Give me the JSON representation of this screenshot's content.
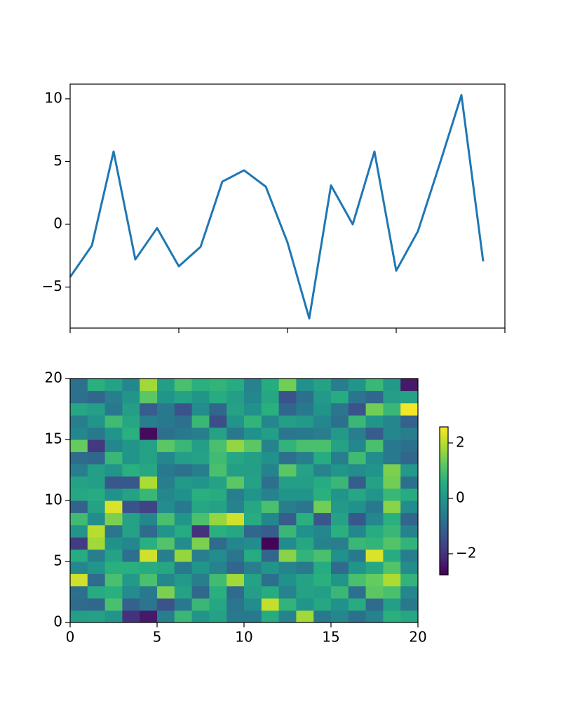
{
  "chart_data": [
    {
      "type": "line",
      "color": "#1f77b4",
      "x": [
        0,
        1,
        2,
        3,
        4,
        5,
        6,
        7,
        8,
        9,
        10,
        11,
        12,
        13,
        14,
        15,
        16,
        17,
        18,
        19
      ],
      "values": [
        -4.2,
        -1.7,
        5.8,
        -2.8,
        -0.3,
        -3.35,
        -1.8,
        3.4,
        4.3,
        3.0,
        -1.45,
        -7.5,
        3.1,
        0.0,
        5.8,
        -3.7,
        -0.55,
        4.8,
        10.3,
        -2.95
      ],
      "xlim": [
        0,
        20
      ],
      "xticks": [
        0,
        5,
        10,
        15,
        20
      ],
      "show_xtick_labels": false,
      "ylim": [
        -8.27,
        11.17
      ],
      "yticks": [
        {
          "value": -5,
          "label": "−5"
        },
        0,
        5,
        10
      ]
    },
    {
      "type": "heatmap",
      "colormap": "viridis",
      "xlim": [
        0,
        20
      ],
      "ylim": [
        0,
        20
      ],
      "xticks": [
        0,
        5,
        10,
        15,
        20
      ],
      "yticks": [
        0,
        5,
        10,
        15,
        20
      ],
      "clim": [
        -2.76,
        2.58
      ],
      "colorbar_ticks": [
        {
          "value": -2,
          "label": "−2"
        },
        0,
        2
      ],
      "z": [
        [
          0.2,
          0.3,
          0.0,
          -2.0,
          -2.4,
          -0.5,
          0.8,
          0.0,
          0.3,
          -0.6,
          -0.6,
          0.5,
          -0.4,
          1.8,
          -0.6,
          -0.3,
          -0.8,
          -0.4,
          0.6,
          0.4
        ],
        [
          -0.9,
          -1.0,
          1.0,
          -1.1,
          -0.7,
          -1.4,
          -0.6,
          0.8,
          0.4,
          -0.7,
          -0.2,
          2.1,
          0.7,
          0.0,
          0.4,
          -0.1,
          0.5,
          -0.9,
          0.2,
          -0.6
        ],
        [
          -0.8,
          0.5,
          0.6,
          -0.2,
          -0.6,
          1.5,
          0.3,
          -1.0,
          0.6,
          -0.9,
          0.2,
          0.5,
          -0.4,
          0.3,
          0.2,
          0.8,
          -0.8,
          1.2,
          1.0,
          -0.3
        ],
        [
          2.2,
          -0.9,
          1.0,
          0.1,
          1.0,
          -0.3,
          0.1,
          -0.5,
          0.9,
          1.8,
          0.3,
          -0.8,
          -0.1,
          0.3,
          0.6,
          0.0,
          1.0,
          1.3,
          1.9,
          0.7
        ],
        [
          -0.3,
          0.0,
          0.6,
          0.6,
          0.5,
          0.4,
          -0.6,
          0.0,
          -0.4,
          -1.0,
          -0.5,
          0.0,
          -0.4,
          -0.6,
          0.5,
          -0.9,
          0.0,
          0.4,
          1.1,
          -0.2
        ],
        [
          0.5,
          -0.5,
          0.3,
          -0.8,
          2.2,
          -0.5,
          1.7,
          -0.5,
          -0.2,
          -0.7,
          0.5,
          -1.0,
          1.6,
          0.7,
          1.0,
          -0.1,
          -0.6,
          2.3,
          0.5,
          -0.5
        ],
        [
          -1.8,
          1.8,
          -0.1,
          -0.3,
          0.6,
          1.1,
          -0.2,
          1.5,
          -0.9,
          -0.3,
          -0.2,
          -2.7,
          -0.2,
          0.4,
          -0.4,
          -0.5,
          0.8,
          0.7,
          1.1,
          0.7
        ],
        [
          0.0,
          2.0,
          -0.7,
          0.3,
          -0.9,
          0.0,
          0.5,
          -2.0,
          0.6,
          0.4,
          -1.0,
          -1.2,
          0.8,
          -0.1,
          -0.3,
          0.6,
          -0.3,
          0.5,
          0.8,
          -0.4
        ],
        [
          0.9,
          -0.2,
          1.5,
          0.3,
          -0.3,
          1.0,
          0.0,
          1.0,
          1.7,
          2.2,
          0.5,
          -0.3,
          -1.2,
          0.6,
          -1.3,
          0.3,
          -1.3,
          -0.3,
          0.6,
          -1.0
        ],
        [
          -1.1,
          0.3,
          2.3,
          -1.4,
          -1.7,
          -0.2,
          -0.6,
          0.4,
          0.3,
          -0.4,
          0.4,
          1.0,
          -0.5,
          -0.7,
          1.4,
          0.1,
          -0.1,
          -0.6,
          1.6,
          -0.2
        ],
        [
          0.4,
          0.5,
          -0.1,
          0.3,
          0.8,
          -0.3,
          -0.1,
          0.6,
          0.5,
          -0.5,
          0.0,
          -0.4,
          0.0,
          0.0,
          0.6,
          0.0,
          0.4,
          0.0,
          0.8,
          0.5
        ],
        [
          0.3,
          0.2,
          -1.3,
          -1.3,
          1.9,
          -0.5,
          0.1,
          0.0,
          0.3,
          1.2,
          0.3,
          -0.8,
          0.2,
          0.2,
          0.5,
          0.8,
          -1.2,
          0.3,
          1.4,
          -0.8
        ],
        [
          -0.5,
          0.2,
          0.0,
          0.6,
          0.4,
          -0.6,
          -0.8,
          -0.5,
          1.0,
          0.2,
          0.2,
          -0.4,
          1.2,
          0.3,
          -0.4,
          0.0,
          -0.2,
          0.0,
          1.5,
          0.1
        ],
        [
          -0.9,
          -1.0,
          0.8,
          0.0,
          0.3,
          -0.3,
          0.2,
          0.3,
          0.9,
          0.4,
          0.2,
          -0.1,
          -0.8,
          -0.5,
          0.5,
          -0.5,
          0.9,
          -0.2,
          -0.6,
          -1.0
        ],
        [
          1.3,
          -1.9,
          -0.3,
          0.0,
          0.3,
          1.2,
          0.8,
          0.2,
          1.0,
          1.7,
          1.2,
          -0.4,
          0.7,
          1.0,
          1.0,
          0.3,
          -0.3,
          1.0,
          -0.6,
          -0.8
        ],
        [
          -0.3,
          -0.6,
          0.0,
          0.6,
          -2.6,
          -0.8,
          -0.6,
          -0.5,
          0.3,
          -0.6,
          -0.1,
          0.2,
          -0.7,
          -0.6,
          -0.5,
          0.1,
          -0.5,
          -1.2,
          -0.3,
          -0.5
        ],
        [
          -0.5,
          0.0,
          0.9,
          0.4,
          -0.5,
          -0.6,
          -0.8,
          0.8,
          -1.5,
          0.0,
          0.7,
          -0.3,
          0.2,
          0.1,
          -0.3,
          -0.8,
          0.8,
          0.0,
          -0.3,
          -1.1
        ],
        [
          0.4,
          0.2,
          -0.6,
          0.2,
          -1.2,
          -0.6,
          -1.4,
          -0.2,
          -1.0,
          0.3,
          -0.1,
          0.6,
          -1.0,
          -0.6,
          0.0,
          -0.7,
          -1.4,
          1.4,
          0.8,
          2.5
        ],
        [
          -0.8,
          -1.0,
          -0.5,
          0.0,
          1.2,
          0.0,
          0.3,
          0.0,
          0.5,
          0.2,
          -0.3,
          0.4,
          -1.4,
          -0.8,
          0.1,
          0.5,
          -0.7,
          -1.0,
          0.2,
          0.3
        ],
        [
          -0.8,
          0.6,
          0.3,
          -0.3,
          1.8,
          0.2,
          1.0,
          0.6,
          0.7,
          0.5,
          -0.4,
          0.5,
          1.4,
          -0.1,
          0.3,
          -0.5,
          0.0,
          0.8,
          0.1,
          -2.4
        ]
      ]
    }
  ]
}
